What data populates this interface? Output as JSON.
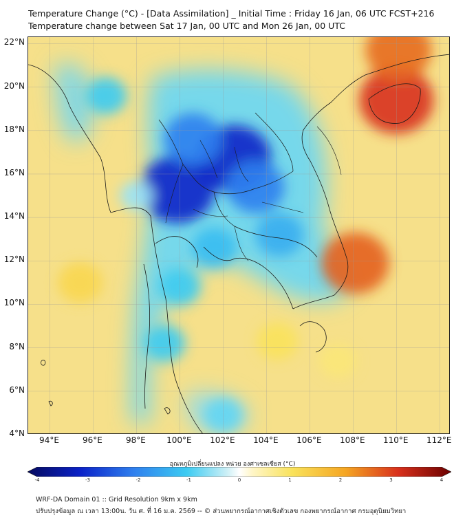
{
  "header": {
    "title_line1": "Temperature Change (°C) - [Data Assimilation] _ Initial Time : Friday 16 Jan, 06 UTC FCST+216",
    "title_line2": "Temperature change between Sat 17 Jan, 00 UTC and Mon 26 Jan, 00 UTC"
  },
  "map": {
    "lat_labels": [
      "22°N",
      "20°N",
      "18°N",
      "16°N",
      "14°N",
      "12°N",
      "10°N",
      "8°N",
      "6°N",
      "4°N"
    ],
    "lat_values": [
      22,
      20,
      18,
      16,
      14,
      12,
      10,
      8,
      6,
      4
    ],
    "lon_labels": [
      "94°E",
      "96°E",
      "98°E",
      "100°E",
      "102°E",
      "104°E",
      "106°E",
      "108°E",
      "110°E",
      "112°E"
    ],
    "lon_values": [
      94,
      96,
      98,
      100,
      102,
      104,
      106,
      108,
      110,
      112
    ],
    "lat_range": [
      4,
      22.3
    ],
    "lon_range": [
      93,
      112.5
    ],
    "grid": true,
    "background_color": "#f6e08a",
    "cold_anomalies": [
      {
        "lon": 102.5,
        "lat": 16.7,
        "value": -3.0
      },
      {
        "lon": 99.9,
        "lat": 15.3,
        "value": -3.0
      },
      {
        "lon": 100.6,
        "lat": 17.6,
        "value": -2.0
      },
      {
        "lon": 103.5,
        "lat": 15.4,
        "value": -2.0
      },
      {
        "lon": 104.6,
        "lat": 13.2,
        "value": -1.4
      },
      {
        "lon": 101.6,
        "lat": 12.6,
        "value": -1.2
      },
      {
        "lon": 100.0,
        "lat": 10.8,
        "value": -1.0
      },
      {
        "lon": 99.3,
        "lat": 8.2,
        "value": -1.0
      },
      {
        "lon": 96.6,
        "lat": 19.6,
        "value": -1.0
      },
      {
        "lon": 102.0,
        "lat": 4.9,
        "value": -0.8
      },
      {
        "lon": 98.0,
        "lat": 15.0,
        "value": -0.5
      }
    ],
    "warm_anomalies": [
      {
        "lon": 110.0,
        "lat": 19.4,
        "value": 3.0
      },
      {
        "lon": 110.1,
        "lat": 21.7,
        "value": 2.5
      },
      {
        "lon": 108.1,
        "lat": 11.9,
        "value": 2.6
      },
      {
        "lon": 95.4,
        "lat": 11.0,
        "value": 1.2
      },
      {
        "lon": 107.3,
        "lat": 7.4,
        "value": 0.8
      },
      {
        "lon": 104.5,
        "lat": 8.3,
        "value": 1.0
      }
    ]
  },
  "colorbar": {
    "title": "อุณหภูมิเปลี่ยนแปลง หน่วย องศาเซลเซียส (°C)",
    "ticks": [
      "-4",
      "-3",
      "-2",
      "-1",
      "0",
      "1",
      "2",
      "3",
      "4"
    ],
    "range": [
      -4,
      4
    ]
  },
  "footer": {
    "line1": "WRF-DA Domain 01 :: Grid Resolution 9km x 9km",
    "line2": "ปรับปรุงข้อมูล ณ เวลา 13:00น. วัน ศ. ที่ 16 ม.ค. 2569 -- © ส่วนพยากรณ์อากาศเชิงตัวเลข กองพยากรณ์อากาศ กรมอุตุนิยมวิทยา"
  }
}
